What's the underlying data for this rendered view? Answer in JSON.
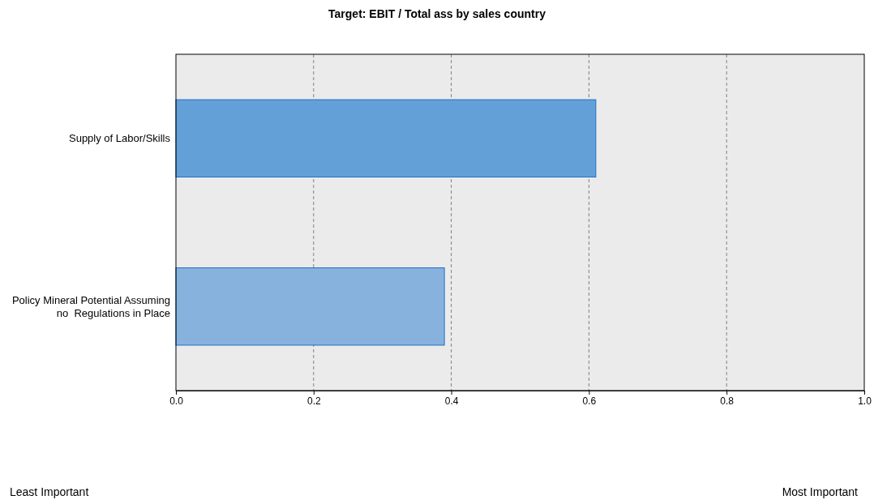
{
  "chart_data": {
    "type": "bar",
    "orientation": "horizontal",
    "title": "Target: EBIT / Total ass by sales country",
    "categories": [
      "Supply of Labor/Skills",
      "Policy Mineral Potential Assuming no  Regulations in Place"
    ],
    "values": [
      0.61,
      0.39
    ],
    "colors": [
      "#64a0d8",
      "#87b2de"
    ],
    "xlim": [
      0,
      1
    ],
    "xticks": [
      {
        "value": 0,
        "label": "0.0"
      },
      {
        "value": 0.2,
        "label": "0.2"
      },
      {
        "value": 0.4,
        "label": "0.4"
      },
      {
        "value": 0.6,
        "label": "0.6"
      },
      {
        "value": 0.8,
        "label": "0.8"
      },
      {
        "value": 1,
        "label": "1.0"
      }
    ],
    "grid": "x",
    "annotations": [
      "Least Important",
      "Most Important"
    ]
  }
}
